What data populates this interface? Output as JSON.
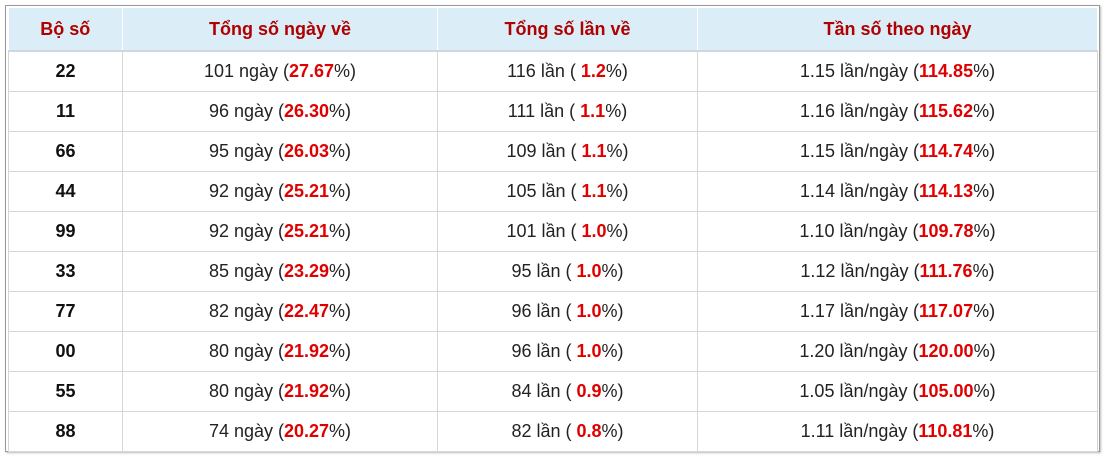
{
  "table": {
    "header": [
      "Bộ số",
      "Tổng số ngày về",
      "Tổng số lần về",
      "Tần số theo ngày"
    ],
    "rows": [
      [
        "22",
        [
          "101 ngày (",
          "27.67",
          "%)"
        ],
        [
          "116 lần ( ",
          "1.2",
          "%)"
        ],
        [
          "1.15 lần/ngày (",
          "114.85",
          "%)"
        ]
      ],
      [
        "11",
        [
          "96 ngày (",
          "26.30",
          "%)"
        ],
        [
          "111 lần ( ",
          "1.1",
          "%)"
        ],
        [
          "1.16 lần/ngày (",
          "115.62",
          "%)"
        ]
      ],
      [
        "66",
        [
          "95 ngày (",
          "26.03",
          "%)"
        ],
        [
          "109 lần ( ",
          "1.1",
          "%)"
        ],
        [
          "1.15 lần/ngày (",
          "114.74",
          "%)"
        ]
      ],
      [
        "44",
        [
          "92 ngày (",
          "25.21",
          "%)"
        ],
        [
          "105 lần ( ",
          "1.1",
          "%)"
        ],
        [
          "1.14 lần/ngày (",
          "114.13",
          "%)"
        ]
      ],
      [
        "99",
        [
          "92 ngày (",
          "25.21",
          "%)"
        ],
        [
          "101 lần ( ",
          "1.0",
          "%)"
        ],
        [
          "1.10 lần/ngày (",
          "109.78",
          "%)"
        ]
      ],
      [
        "33",
        [
          "85 ngày (",
          "23.29",
          "%)"
        ],
        [
          "95 lần ( ",
          "1.0",
          "%)"
        ],
        [
          "1.12 lần/ngày (",
          "111.76",
          "%)"
        ]
      ],
      [
        "77",
        [
          "82 ngày (",
          "22.47",
          "%)"
        ],
        [
          "96 lần ( ",
          "1.0",
          "%)"
        ],
        [
          "1.17 lần/ngày (",
          "117.07",
          "%)"
        ]
      ],
      [
        "00",
        [
          "80 ngày (",
          "21.92",
          "%)"
        ],
        [
          "96 lần ( ",
          "1.0",
          "%)"
        ],
        [
          "1.20 lần/ngày (",
          "120.00",
          "%)"
        ]
      ],
      [
        "55",
        [
          "80 ngày (",
          "21.92",
          "%)"
        ],
        [
          "84 lần ( ",
          "0.9",
          "%)"
        ],
        [
          "1.05 lần/ngày (",
          "105.00",
          "%)"
        ]
      ],
      [
        "88",
        [
          "74 ngày (",
          "20.27",
          "%)"
        ],
        [
          "82 lần ( ",
          "0.8",
          "%)"
        ],
        [
          "1.11 lần/ngày (",
          "110.81",
          "%)"
        ]
      ]
    ]
  }
}
